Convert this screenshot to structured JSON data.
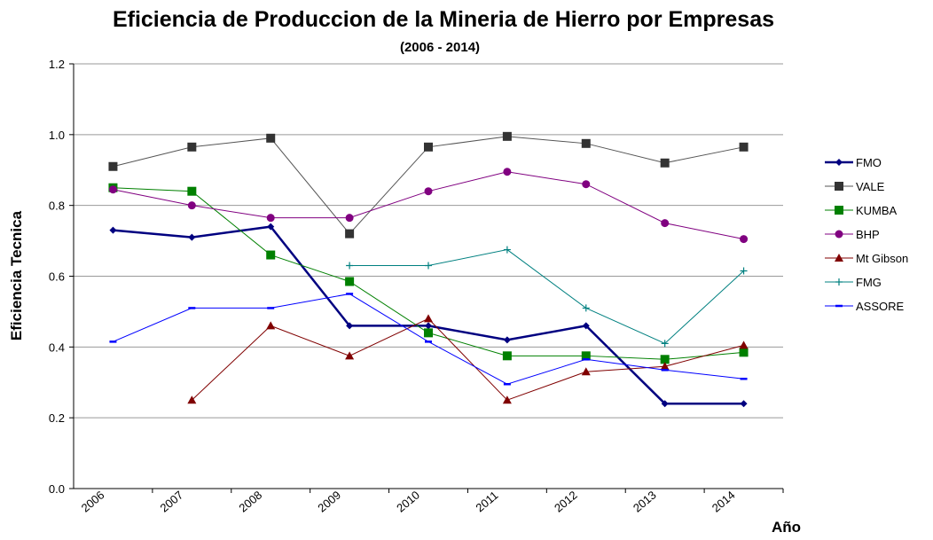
{
  "chart_data": {
    "type": "line",
    "title": "Eficiencia de Produccion de la Mineria de Hierro por Empresas",
    "subtitle": "(2006 - 2014)",
    "y_label": "Eficiencia Tecnica",
    "x_label": "Año",
    "categories": [
      "2006",
      "2007",
      "2008",
      "2009",
      "2010",
      "2011",
      "2012",
      "2013",
      "2014"
    ],
    "ylim": [
      0,
      1.2
    ],
    "yticks": [
      {
        "value": 0,
        "label": "0.0"
      },
      0.2,
      0.4,
      0.6,
      0.8,
      {
        "value": 1,
        "label": "1.0"
      },
      1.2
    ],
    "grid": true,
    "legend": "right",
    "series": [
      {
        "name": "FMO",
        "color": "#000080",
        "marker": "diamond",
        "values": [
          0.73,
          0.71,
          0.74,
          0.46,
          0.46,
          0.42,
          0.46,
          0.24,
          0.24
        ]
      },
      {
        "name": "VALE",
        "color": "#333333",
        "marker": "square",
        "values": [
          0.91,
          0.965,
          0.99,
          0.72,
          0.965,
          0.995,
          0.975,
          0.92,
          0.965
        ]
      },
      {
        "name": "KUMBA",
        "color": "#008000",
        "marker": "square",
        "values": [
          0.85,
          0.84,
          0.66,
          0.585,
          0.44,
          0.375,
          0.375,
          0.365,
          0.385
        ]
      },
      {
        "name": "BHP",
        "color": "#800080",
        "marker": "circle",
        "values": [
          0.845,
          0.8,
          0.765,
          0.765,
          0.84,
          0.895,
          0.86,
          0.75,
          0.705
        ]
      },
      {
        "name": "Mt Gibson",
        "color": "#800000",
        "marker": "triangle",
        "values": [
          null,
          0.25,
          0.46,
          0.375,
          0.48,
          0.25,
          0.33,
          0.345,
          0.405
        ]
      },
      {
        "name": "FMG",
        "color": "#008080",
        "marker": "plus",
        "values": [
          null,
          null,
          null,
          0.63,
          0.63,
          0.675,
          0.51,
          0.41,
          0.615
        ]
      },
      {
        "name": "ASSORE",
        "color": "#0000ff",
        "marker": "dash",
        "values": [
          0.415,
          0.51,
          0.51,
          0.55,
          0.415,
          0.295,
          0.365,
          0.335,
          0.31
        ]
      }
    ]
  }
}
